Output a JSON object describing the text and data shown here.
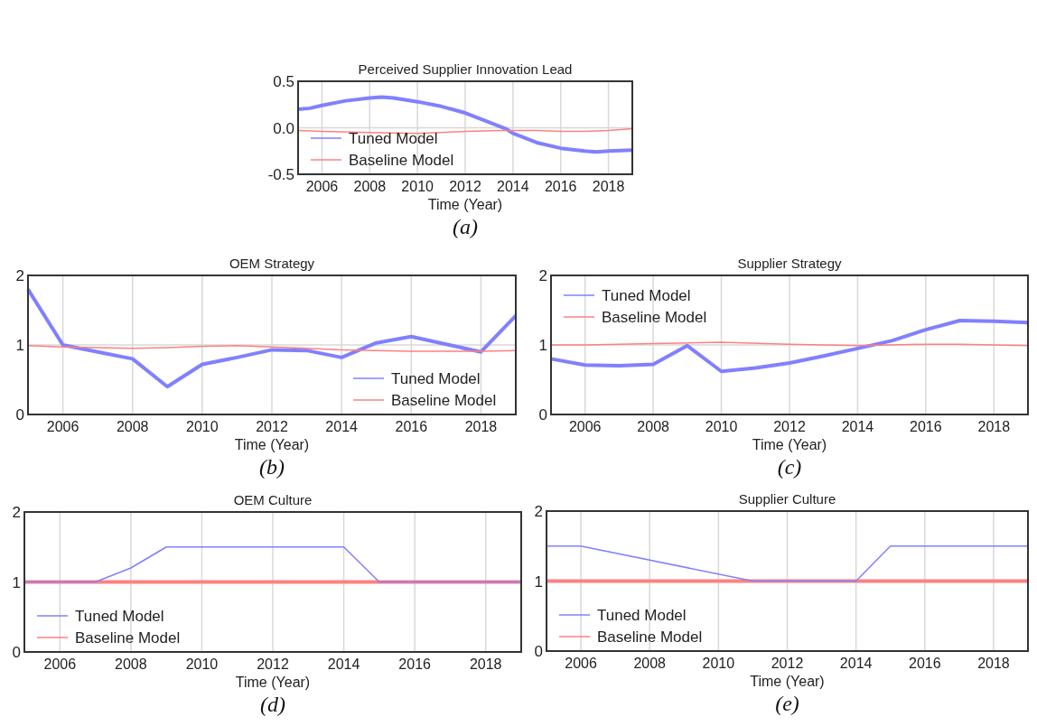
{
  "chart_data": [
    {
      "type": "line",
      "title": "Perceived Supplier Innovation Lead",
      "xlabel": "Time (Year)",
      "annotations": [
        "(a)"
      ],
      "xlim": [
        2005,
        2019
      ],
      "xticks": [
        2006,
        2008,
        2010,
        2012,
        2014,
        2016,
        2018
      ],
      "ylim": [
        -0.5,
        0.5
      ],
      "yticks": [
        {
          "value": -0.5,
          "label": "-0.5"
        },
        {
          "value": 0,
          "label": "0.0"
        },
        {
          "value": 0.5,
          "label": "0.5"
        }
      ],
      "grid": true,
      "legend": "bottom left",
      "series": [
        {
          "name": "Tuned Model",
          "color": "#8080ff",
          "x": [
            2005,
            2005.5,
            2006,
            2007,
            2008,
            2008.5,
            2009,
            2010,
            2011,
            2012,
            2013,
            2013.7,
            2014,
            2015,
            2016,
            2017,
            2017.5,
            2018,
            2019
          ],
          "values": [
            0.2,
            0.21,
            0.24,
            0.29,
            0.32,
            0.33,
            0.32,
            0.28,
            0.23,
            0.16,
            0.06,
            -0.01,
            -0.06,
            -0.16,
            -0.22,
            -0.25,
            -0.26,
            -0.25,
            -0.24
          ]
        },
        {
          "name": "Baseline Model",
          "color": "#ff8080",
          "x": [
            2005,
            2006,
            2008,
            2010,
            2012,
            2013.5,
            2015,
            2016,
            2017,
            2018,
            2019
          ],
          "values": [
            -0.03,
            -0.04,
            -0.05,
            -0.06,
            -0.04,
            -0.03,
            -0.03,
            -0.04,
            -0.04,
            -0.03,
            -0.01
          ]
        }
      ]
    },
    {
      "type": "line",
      "title": "OEM Strategy",
      "xlabel": "Time (Year)",
      "annotations": [
        "(b)"
      ],
      "xlim": [
        2005,
        2019
      ],
      "xticks": [
        2006,
        2008,
        2010,
        2012,
        2014,
        2016,
        2018
      ],
      "ylim": [
        0,
        2
      ],
      "yticks": [
        0,
        1,
        2
      ],
      "grid": true,
      "legend": "bottom right",
      "series": [
        {
          "name": "Tuned Model",
          "color": "#8080ff",
          "x": [
            2005,
            2006,
            2007,
            2008,
            2009,
            2010,
            2011,
            2012,
            2013,
            2014,
            2015,
            2016,
            2017,
            2018,
            2019
          ],
          "values": [
            1.8,
            1.0,
            0.9,
            0.8,
            0.4,
            0.72,
            0.82,
            0.93,
            0.92,
            0.82,
            1.03,
            1.12,
            1.01,
            0.9,
            1.42
          ]
        },
        {
          "name": "Baseline Model",
          "color": "#ff8080",
          "x": [
            2005,
            2006,
            2008,
            2009,
            2010,
            2011,
            2012,
            2013,
            2014,
            2015,
            2016,
            2017,
            2018,
            2019
          ],
          "values": [
            0.99,
            0.97,
            0.95,
            0.96,
            0.98,
            0.99,
            0.97,
            0.95,
            0.93,
            0.92,
            0.91,
            0.91,
            0.91,
            0.92
          ]
        }
      ]
    },
    {
      "type": "line",
      "title": "Supplier Strategy",
      "xlabel": "Time (Year)",
      "annotations": [
        "(c)"
      ],
      "xlim": [
        2005,
        2019
      ],
      "xticks": [
        2006,
        2008,
        2010,
        2012,
        2014,
        2016,
        2018
      ],
      "ylim": [
        0,
        2
      ],
      "yticks": [
        0,
        1,
        2
      ],
      "grid": true,
      "legend": "top left",
      "series": [
        {
          "name": "Tuned Model",
          "color": "#8080ff",
          "x": [
            2005,
            2006,
            2007,
            2008,
            2009,
            2010,
            2011,
            2012,
            2013,
            2014,
            2015,
            2016,
            2017,
            2018,
            2019
          ],
          "values": [
            0.8,
            0.71,
            0.7,
            0.72,
            0.99,
            0.62,
            0.67,
            0.74,
            0.84,
            0.95,
            1.06,
            1.22,
            1.35,
            1.34,
            1.32
          ]
        },
        {
          "name": "Baseline Model",
          "color": "#ff8080",
          "x": [
            2005,
            2006,
            2008,
            2010,
            2012,
            2014,
            2016,
            2017,
            2019
          ],
          "values": [
            1.0,
            1.0,
            1.02,
            1.04,
            1.01,
            0.99,
            1.01,
            1.01,
            0.99
          ]
        }
      ]
    },
    {
      "type": "line",
      "title": "OEM Culture",
      "xlabel": "Time (Year)",
      "annotations": [
        "(d)"
      ],
      "xlim": [
        2005,
        2019
      ],
      "xticks": [
        2006,
        2008,
        2010,
        2012,
        2014,
        2016,
        2018
      ],
      "ylim": [
        0,
        2
      ],
      "yticks": [
        0,
        1,
        2
      ],
      "grid": true,
      "legend": "bottom left",
      "series": [
        {
          "name": "Baseline Model",
          "color": "#ff8080",
          "x": [
            2005,
            2019
          ],
          "values": [
            1,
            1
          ]
        },
        {
          "name": "Tuned Model",
          "color": "#8080ff",
          "x": [
            2005,
            2007,
            2008,
            2009,
            2014,
            2015,
            2019
          ],
          "values": [
            1,
            1,
            1.2,
            1.5,
            1.5,
            1,
            1
          ]
        }
      ]
    },
    {
      "type": "line",
      "title": "Supplier Culture",
      "xlabel": "Time (Year)",
      "annotations": [
        "(e)"
      ],
      "xlim": [
        2005,
        2019
      ],
      "xticks": [
        2006,
        2008,
        2010,
        2012,
        2014,
        2016,
        2018
      ],
      "ylim": [
        0,
        2
      ],
      "yticks": [
        0,
        1,
        2
      ],
      "grid": true,
      "legend": "bottom left",
      "series": [
        {
          "name": "Baseline Model",
          "color": "#ff8080",
          "x": [
            2005,
            2019
          ],
          "values": [
            1,
            1
          ]
        },
        {
          "name": "Tuned Model",
          "color": "#8080ff",
          "x": [
            2005,
            2006,
            2011,
            2014,
            2015,
            2019
          ],
          "values": [
            1.5,
            1.5,
            1,
            1,
            1.5,
            1.5
          ]
        }
      ]
    }
  ]
}
